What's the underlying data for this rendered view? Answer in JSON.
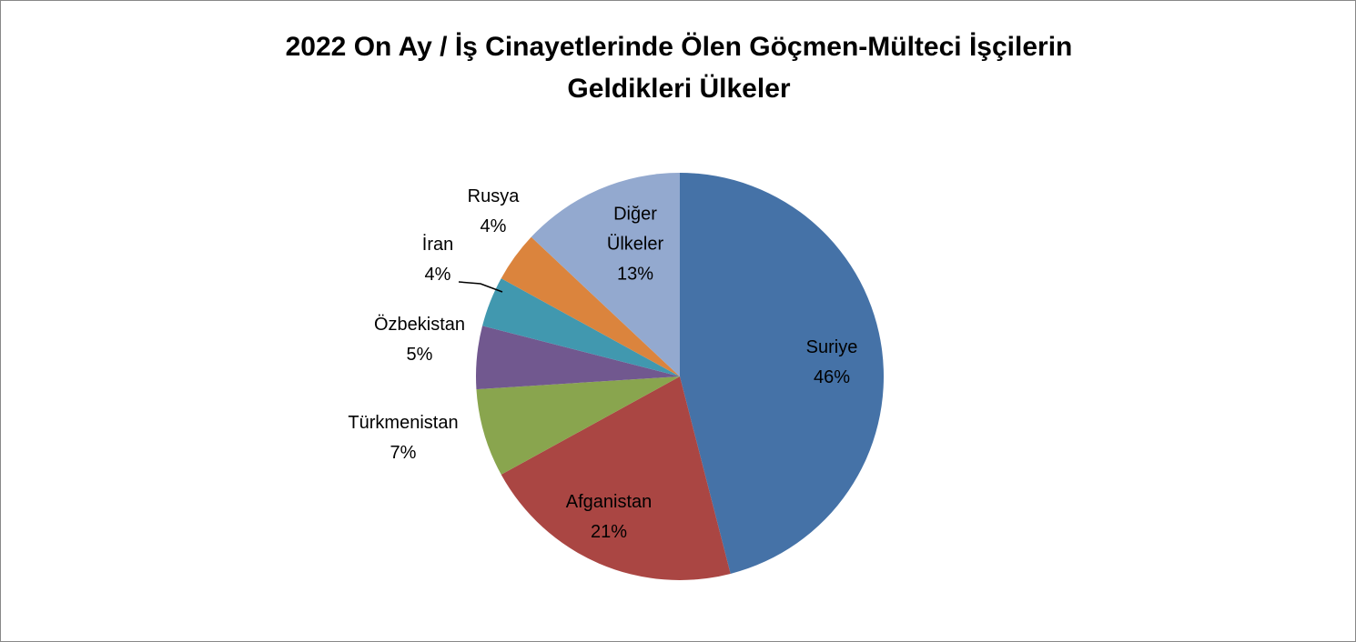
{
  "chart_data": {
    "type": "pie",
    "title": "2022 On Ay / İş Cinayetlerinde Ölen Göçmen-Mülteci İşçilerin Geldikleri Ülkeler",
    "categories": [
      "Suriye",
      "Afganistan",
      "Türkmenistan",
      "Özbekistan",
      "İran",
      "Rusya",
      "Diğer Ülkeler"
    ],
    "values": [
      46,
      21,
      7,
      5,
      4,
      4,
      13
    ],
    "value_labels": [
      "46%",
      "21%",
      "7%",
      "5%",
      "4%",
      "4%",
      "13%"
    ],
    "colors": [
      "#4572a7",
      "#aa4643",
      "#89a54e",
      "#71588f",
      "#4198af",
      "#db843d",
      "#93a9cf"
    ]
  }
}
